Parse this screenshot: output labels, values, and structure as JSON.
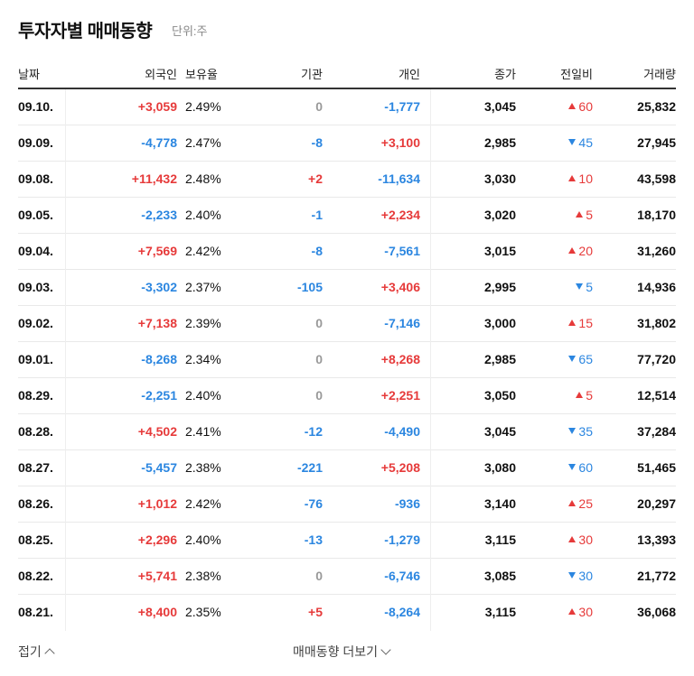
{
  "header": {
    "title": "투자자별 매매동향",
    "unit": "단위:주"
  },
  "table": {
    "columns": [
      "날짜",
      "외국인",
      "보유율",
      "기관",
      "개인",
      "종가",
      "전일비",
      "거래량"
    ],
    "rows": [
      [
        "09.10.",
        "+3,059",
        "2.49%",
        "0",
        "-1,777",
        "3,045",
        {
          "dir": "up",
          "text": "60"
        },
        "25,832"
      ],
      [
        "09.09.",
        "-4,778",
        "2.47%",
        "-8",
        "+3,100",
        "2,985",
        {
          "dir": "down",
          "text": "45"
        },
        "27,945"
      ],
      [
        "09.08.",
        "+11,432",
        "2.48%",
        "+2",
        "-11,634",
        "3,030",
        {
          "dir": "up",
          "text": "10"
        },
        "43,598"
      ],
      [
        "09.05.",
        "-2,233",
        "2.40%",
        "-1",
        "+2,234",
        "3,020",
        {
          "dir": "up",
          "text": "5"
        },
        "18,170"
      ],
      [
        "09.04.",
        "+7,569",
        "2.42%",
        "-8",
        "-7,561",
        "3,015",
        {
          "dir": "up",
          "text": "20"
        },
        "31,260"
      ],
      [
        "09.03.",
        "-3,302",
        "2.37%",
        "-105",
        "+3,406",
        "2,995",
        {
          "dir": "down",
          "text": "5"
        },
        "14,936"
      ],
      [
        "09.02.",
        "+7,138",
        "2.39%",
        "0",
        "-7,146",
        "3,000",
        {
          "dir": "up",
          "text": "15"
        },
        "31,802"
      ],
      [
        "09.01.",
        "-8,268",
        "2.34%",
        "0",
        "+8,268",
        "2,985",
        {
          "dir": "down",
          "text": "65"
        },
        "77,720"
      ],
      [
        "08.29.",
        "-2,251",
        "2.40%",
        "0",
        "+2,251",
        "3,050",
        {
          "dir": "up",
          "text": "5"
        },
        "12,514"
      ],
      [
        "08.28.",
        "+4,502",
        "2.41%",
        "-12",
        "-4,490",
        "3,045",
        {
          "dir": "down",
          "text": "35"
        },
        "37,284"
      ],
      [
        "08.27.",
        "-5,457",
        "2.38%",
        "-221",
        "+5,208",
        "3,080",
        {
          "dir": "down",
          "text": "60"
        },
        "51,465"
      ],
      [
        "08.26.",
        "+1,012",
        "2.42%",
        "-76",
        "-936",
        "3,140",
        {
          "dir": "up",
          "text": "25"
        },
        "20,297"
      ],
      [
        "08.25.",
        "+2,296",
        "2.40%",
        "-13",
        "-1,279",
        "3,115",
        {
          "dir": "up",
          "text": "30"
        },
        "13,393"
      ],
      [
        "08.22.",
        "+5,741",
        "2.38%",
        "0",
        "-6,746",
        "3,085",
        {
          "dir": "down",
          "text": "30"
        },
        "21,772"
      ],
      [
        "08.21.",
        "+8,400",
        "2.35%",
        "+5",
        "-8,264",
        "3,115",
        {
          "dir": "up",
          "text": "30"
        },
        "36,068"
      ]
    ]
  },
  "footer": {
    "collapse": "접기",
    "more": "매매동향 더보기"
  }
}
